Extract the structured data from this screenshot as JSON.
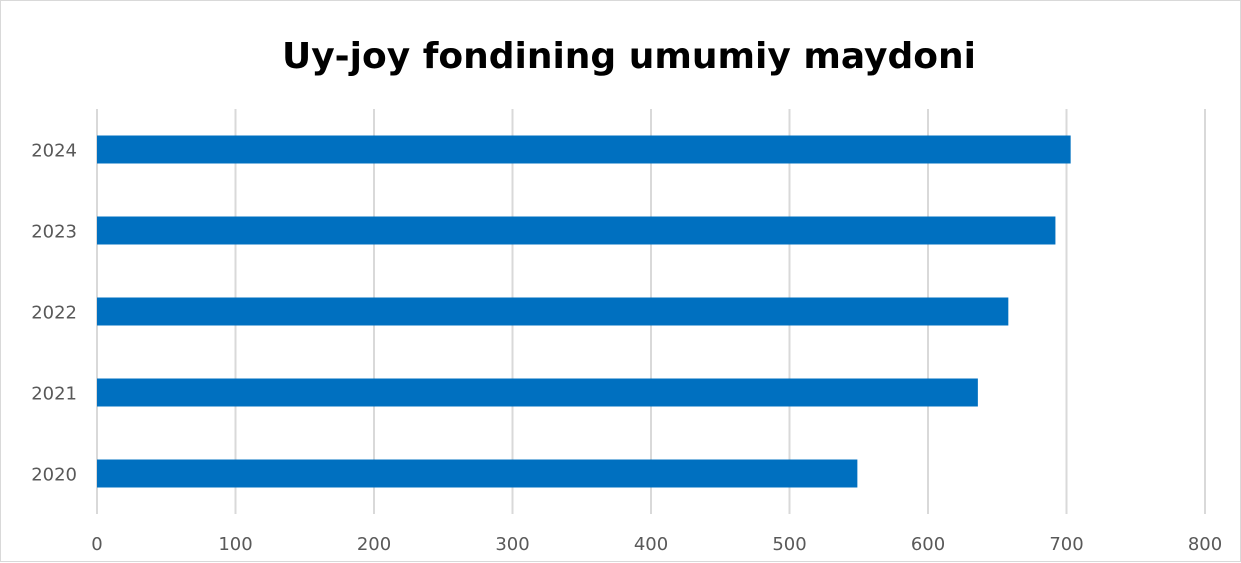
{
  "chart_data": {
    "type": "bar",
    "orientation": "horizontal",
    "title": "Uy-joy fondining umumiy maydoni",
    "xlabel": "",
    "ylabel": "",
    "categories": [
      "2020",
      "2021",
      "2022",
      "2023",
      "2024"
    ],
    "values": [
      549,
      636,
      658,
      692,
      703
    ],
    "xlim": [
      0,
      800
    ],
    "xticks": [
      "0",
      "100",
      "200",
      "300",
      "400",
      "500",
      "600",
      "700",
      "800"
    ],
    "grid": "vertical",
    "legend": "none",
    "bar_color": "#0070C0",
    "grid_color": "#d9d9d9"
  }
}
